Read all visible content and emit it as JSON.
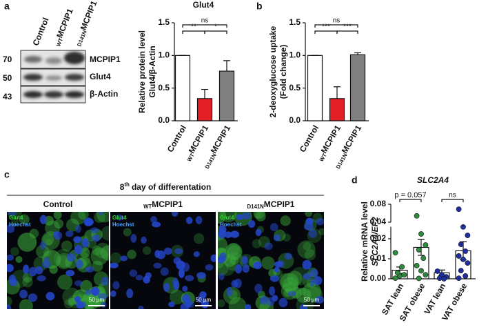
{
  "panel_letters": [
    "a",
    "b",
    "c",
    "d"
  ],
  "blot": {
    "lanes": [
      "Control",
      "MCPIP1",
      "MCPIP1"
    ],
    "lane_subscripts": [
      null,
      "WT",
      "D141N"
    ],
    "bands": [
      "MCPIP1",
      "Glut4",
      "β-Actin"
    ],
    "markers": [
      70,
      50,
      43
    ]
  },
  "chart_data": [
    {
      "type": "bar",
      "title": "Glut4",
      "ylabel": [
        "Relative protein level",
        "Glut4/β-Actin"
      ],
      "categories": [
        "Control",
        "MCPIP1",
        "MCPIP1"
      ],
      "category_subscripts": [
        null,
        "WT",
        "D141N"
      ],
      "values": [
        1.0,
        0.34,
        0.76
      ],
      "errors": [
        0,
        0.14,
        0.16
      ],
      "colors": [
        "#ffffff",
        "#e31e24",
        "#808080"
      ],
      "ylim": [
        0,
        1.5
      ],
      "yticks": [
        {
          "value": 0,
          "label": "0.0"
        },
        0.5,
        {
          "value": 1,
          "label": "1.0"
        },
        1.5
      ],
      "annotations": [
        "ns",
        "**",
        "*"
      ]
    },
    {
      "type": "bar",
      "ylabel": [
        "2-deoxyglucose uptake",
        "(Fold change)"
      ],
      "categories": [
        "Control",
        "MCPIP1",
        "MCPIP1"
      ],
      "category_subscripts": [
        null,
        "WT",
        "D141N"
      ],
      "values": [
        1.0,
        0.34,
        1.01
      ],
      "errors": [
        0,
        0.18,
        0.03
      ],
      "colors": [
        "#ffffff",
        "#e31e24",
        "#808080"
      ],
      "ylim": [
        0,
        1.5
      ],
      "yticks": [
        {
          "value": 0,
          "label": "0.0"
        },
        0.5,
        {
          "value": 1,
          "label": "1.0"
        },
        1.5
      ],
      "annotations": [
        "ns",
        "***",
        "***"
      ]
    },
    {
      "type": "bar",
      "title": "SLC2A4",
      "ylabel": [
        "Relative mRNA level",
        "SLC2A4/EF2"
      ],
      "categories": [
        "SAT lean",
        "SAT obese",
        "VAT lean",
        "VAT obese"
      ],
      "values": [
        0.0043,
        0.0157,
        0.003,
        0.014
      ],
      "errors": [
        0.0016,
        0.004,
        0.0014,
        0.0045
      ],
      "bar_color": "#ffffff",
      "colors": [
        "#2e8b3e",
        "#2e8b3e",
        "#1f2ea0",
        "#1f2ea0"
      ],
      "points": [
        [
          0.0003,
          0.0015,
          0.002,
          0.003,
          0.006,
          0.013
        ],
        [
          0.054,
          0.0224,
          0.0169,
          0.0145,
          0.0103,
          0.0066,
          0.004,
          0.002,
          0.0002
        ],
        [
          0.0038,
          0.002,
          0.001,
          0.0003,
          0
        ],
        [
          0.069,
          0.0259,
          0.0217,
          0.0172,
          0.0138,
          0.0114,
          0.0097,
          0.0079,
          0.0041,
          0.0014,
          0.0003
        ]
      ],
      "ylim": [
        0,
        0.026
      ],
      "yticks": [
        {
          "value": 0,
          "label": "0.00"
        },
        0.01,
        0.02
      ],
      "ylim_upper": [
        0.04,
        0.08
      ],
      "yticks_upper": [
        0.04,
        0.08
      ],
      "annotations": [
        "p = 0.057",
        "ns"
      ]
    }
  ],
  "images": {
    "title": "8",
    "title_sup": "th",
    "title_rest": "day of differentation",
    "labels": [
      "Control",
      "MCPIP1",
      "MCPIP1"
    ],
    "label_subscripts": [
      null,
      "WT",
      "D141N"
    ],
    "channels": [
      "Glut4",
      "Hoechst"
    ],
    "scale_bar": "50 µm"
  }
}
